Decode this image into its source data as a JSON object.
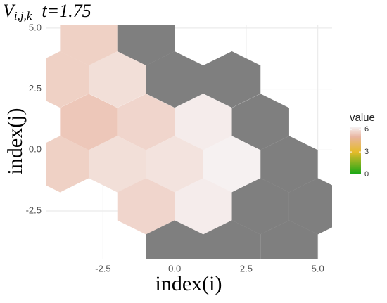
{
  "chart_data": {
    "type": "hex",
    "title": {
      "symbol": "V",
      "subscript": "i,j,k",
      "time": "t=1.75"
    },
    "xlabel": "index(i)",
    "ylabel": "index(j)",
    "x": [
      -3,
      -1,
      -4,
      -2,
      0,
      2,
      -3,
      -1,
      1,
      3,
      -4,
      -2,
      0,
      2,
      4,
      -1,
      1,
      3,
      5,
      0,
      2,
      4
    ],
    "y": [
      4.62,
      4.62,
      2.89,
      2.89,
      2.89,
      2.89,
      1.15,
      1.15,
      1.15,
      1.15,
      -0.58,
      -0.58,
      -0.58,
      -0.58,
      -0.58,
      -2.31,
      -2.31,
      -2.31,
      -2.31,
      -4.04,
      -4.04,
      -4.04
    ],
    "values": [
      5.6,
      null,
      5.6,
      5.9,
      null,
      null,
      5.4,
      5.7,
      6.2,
      null,
      5.6,
      5.9,
      6.0,
      6.3,
      null,
      5.7,
      6.2,
      null,
      null,
      null,
      null,
      null
    ],
    "binwidth": 2,
    "xlim": [
      -4.5,
      5.5
    ],
    "ylim": [
      -4.46,
      5.14
    ],
    "xticks": [
      {
        "value": -2.5,
        "label": "-2.5"
      },
      {
        "value": 0,
        "label": "0.0"
      },
      {
        "value": 2.5,
        "label": "2.5"
      },
      {
        "value": 5,
        "label": "5.0"
      }
    ],
    "yticks": [
      {
        "value": -2.5,
        "label": "-2.5"
      },
      {
        "value": 0,
        "label": "0.0"
      },
      {
        "value": 2.5,
        "label": "2.5"
      },
      {
        "value": 5,
        "label": "5.0"
      }
    ],
    "grid": true,
    "na_color": "#7f7f7f",
    "legend": {
      "title": "value",
      "lim": [
        0,
        6.3
      ],
      "ticks": [
        0,
        3,
        6
      ],
      "stops": [
        0,
        3,
        5,
        6.3
      ],
      "colors": [
        "#16a816",
        "#e6bb2a",
        "#e9b5a0",
        "#f6f1f1"
      ]
    }
  }
}
